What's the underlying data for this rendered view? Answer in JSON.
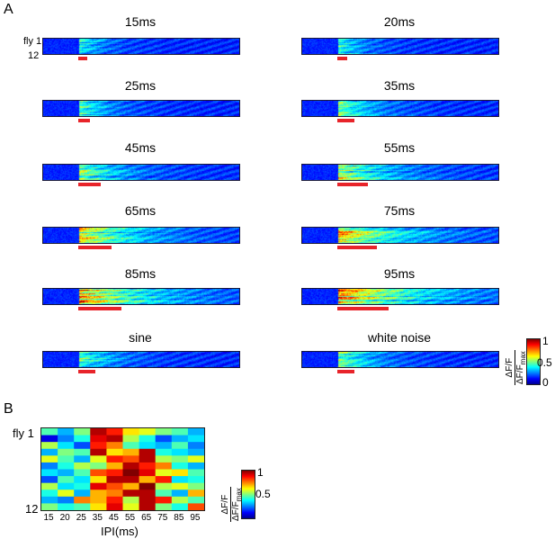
{
  "panel_a": {
    "letter": "A",
    "row_label_top": "fly 1",
    "row_label_bottom": "12",
    "conditions": [
      {
        "label": "15ms",
        "stim_fraction": 0.045,
        "color": "#e8242a"
      },
      {
        "label": "20ms",
        "stim_fraction": 0.05
      },
      {
        "label": "25ms",
        "stim_fraction": 0.06
      },
      {
        "label": "35ms",
        "stim_fraction": 0.085
      },
      {
        "label": "45ms",
        "stim_fraction": 0.115
      },
      {
        "label": "55ms",
        "stim_fraction": 0.155
      },
      {
        "label": "65ms",
        "stim_fraction": 0.17
      },
      {
        "label": "75ms",
        "stim_fraction": 0.2
      },
      {
        "label": "85ms",
        "stim_fraction": 0.22
      },
      {
        "label": "95ms",
        "stim_fraction": 0.26
      },
      {
        "label": "sine",
        "stim_fraction": 0.085
      },
      {
        "label": "white noise",
        "stim_fraction": 0.085
      }
    ],
    "colorbar": {
      "ticks": [
        "1",
        "0.5",
        "0"
      ],
      "numerator": "ΔF/F",
      "denominator": "ΔF/F",
      "denominator_sub": "max"
    }
  },
  "panel_b": {
    "letter": "B",
    "row_label_top": "fly 1",
    "row_label_bottom": "12",
    "xlabel": "IPI(ms)",
    "colorbar": {
      "ticks": [
        "1",
        "0.5"
      ],
      "numerator": "ΔF/F",
      "denominator": "ΔF/F",
      "denominator_sub": "max"
    }
  },
  "chart_data": {
    "type": "heatmap",
    "xlabel": "IPI(ms)",
    "categories": [
      "15",
      "20",
      "25",
      "35",
      "45",
      "55",
      "65",
      "75",
      "85",
      "95"
    ],
    "rows": [
      "fly 1",
      "",
      "",
      "",
      "",
      "",
      "",
      "",
      "",
      "",
      "",
      "12"
    ],
    "zlim": [
      0,
      1
    ],
    "colormap": "jet",
    "values": [
      [
        0.45,
        0.3,
        0.5,
        0.95,
        0.85,
        0.65,
        0.6,
        0.5,
        0.45,
        0.3
      ],
      [
        0.1,
        0.25,
        0.4,
        0.9,
        0.95,
        0.55,
        0.4,
        0.2,
        0.3,
        0.35
      ],
      [
        0.55,
        0.35,
        0.2,
        0.85,
        0.75,
        0.45,
        0.35,
        0.3,
        0.45,
        0.25
      ],
      [
        0.3,
        0.5,
        0.45,
        0.95,
        0.65,
        0.7,
        0.95,
        0.4,
        0.35,
        0.3
      ],
      [
        0.6,
        0.45,
        0.3,
        0.6,
        0.85,
        0.8,
        0.95,
        0.55,
        0.5,
        0.6
      ],
      [
        0.25,
        0.4,
        0.55,
        0.5,
        0.7,
        0.95,
        0.85,
        0.75,
        0.4,
        0.3
      ],
      [
        0.35,
        0.3,
        0.45,
        0.8,
        0.85,
        1.0,
        0.9,
        0.6,
        0.65,
        0.45
      ],
      [
        0.2,
        0.45,
        0.35,
        0.65,
        0.95,
        0.95,
        0.7,
        0.85,
        0.35,
        0.4
      ],
      [
        0.55,
        0.35,
        0.4,
        0.9,
        0.8,
        0.7,
        1.0,
        0.55,
        0.6,
        0.5
      ],
      [
        0.4,
        0.6,
        0.3,
        0.7,
        0.75,
        0.95,
        0.95,
        0.45,
        0.3,
        0.7
      ],
      [
        0.3,
        0.25,
        0.75,
        0.7,
        0.85,
        0.55,
        0.95,
        0.85,
        0.55,
        0.45
      ],
      [
        0.5,
        0.4,
        0.45,
        0.65,
        0.9,
        0.6,
        0.95,
        0.5,
        0.4,
        0.8
      ]
    ]
  }
}
